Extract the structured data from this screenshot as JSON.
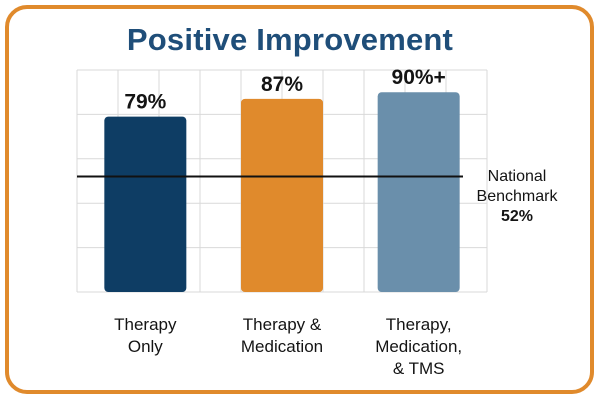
{
  "chart_data": {
    "type": "bar",
    "title": "Positive Improvement",
    "xlabel": "",
    "ylabel": "",
    "ylim": [
      0,
      100
    ],
    "grid": true,
    "categories": [
      {
        "lines": [
          "Therapy",
          "Only"
        ]
      },
      {
        "lines": [
          "Therapy &",
          "Medication"
        ]
      },
      {
        "lines": [
          "Therapy,",
          "Medication,",
          "& TMS"
        ]
      }
    ],
    "values": [
      79,
      87,
      90
    ],
    "value_labels": [
      "79%",
      "87%",
      "90%+"
    ],
    "colors": [
      "#0e3d64",
      "#e08a2c",
      "#6a8fab"
    ],
    "benchmark": {
      "value": 52,
      "label_lines": [
        "National",
        "Benchmark"
      ],
      "value_label": "52%"
    }
  },
  "theme": {
    "frame_color": "#e08a2c",
    "title_color": "#1f4e79",
    "grid_color": "#d9d9d9",
    "benchmark_color": "#111111"
  }
}
